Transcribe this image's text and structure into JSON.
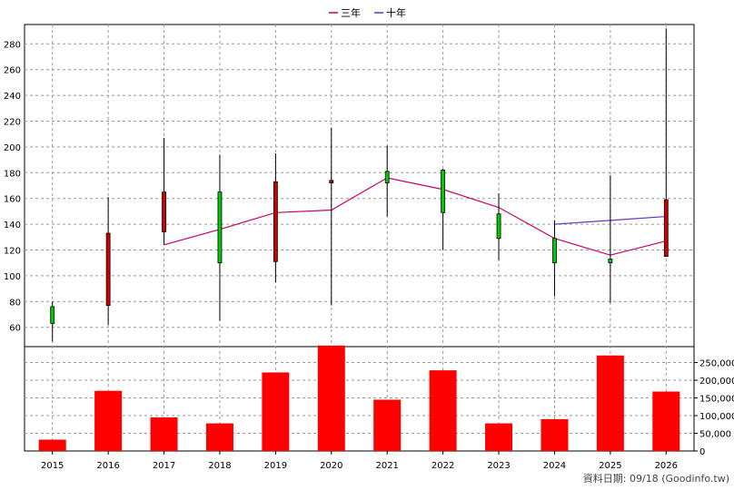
{
  "chart_data": {
    "type": "candlestick+line+bar",
    "years": [
      "2015",
      "2016",
      "2017",
      "2018",
      "2019",
      "2020",
      "2021",
      "2022",
      "2023",
      "2024",
      "2025",
      "2026"
    ],
    "price_axis": {
      "ticks": [
        60,
        80,
        100,
        120,
        140,
        160,
        180,
        200,
        220,
        240,
        260,
        280
      ],
      "ylim": [
        45,
        295
      ]
    },
    "candles": [
      {
        "year": "2015",
        "open": 76,
        "close": 63,
        "high": 80,
        "low": 49
      },
      {
        "year": "2016",
        "open": 77,
        "close": 133,
        "high": 161,
        "low": 62
      },
      {
        "year": "2017",
        "open": 134,
        "close": 165,
        "high": 207,
        "low": 124
      },
      {
        "year": "2018",
        "open": 165,
        "close": 110,
        "high": 194,
        "low": 65
      },
      {
        "year": "2019",
        "open": 111,
        "close": 173,
        "high": 195,
        "low": 95
      },
      {
        "year": "2020",
        "open": 172,
        "close": 174,
        "high": 215,
        "low": 77
      },
      {
        "year": "2021",
        "open": 181,
        "close": 172,
        "high": 201,
        "low": 146
      },
      {
        "year": "2022",
        "open": 182,
        "close": 149,
        "high": 183,
        "low": 120
      },
      {
        "year": "2023",
        "open": 148,
        "close": 129,
        "high": 164,
        "low": 112
      },
      {
        "year": "2024",
        "open": 129,
        "close": 110,
        "high": 143,
        "low": 84
      },
      {
        "year": "2025",
        "open": 113,
        "close": 110,
        "high": 178,
        "low": 79
      },
      {
        "year": "2026",
        "open": 115,
        "close": 159,
        "high": 292,
        "low": 115
      }
    ],
    "candle_colors": {
      "up": "#d10000",
      "down": "#00cc00",
      "border": "#000000"
    },
    "series": [
      {
        "name": "三年",
        "color": "#cc0066",
        "x": [
          "2017",
          "2018",
          "2019",
          "2020",
          "2021",
          "2022",
          "2023",
          "2024",
          "2025",
          "2026"
        ],
        "values": [
          124,
          136,
          149,
          151,
          176,
          167,
          153,
          129,
          116,
          127
        ]
      },
      {
        "name": "十年",
        "color": "#6633cc",
        "x": [
          "2024",
          "2025",
          "2026"
        ],
        "values": [
          140,
          143,
          146
        ]
      }
    ],
    "volume": {
      "values": [
        32000,
        170000,
        95000,
        78000,
        222000,
        298000,
        145000,
        228000,
        78000,
        90000,
        270000,
        168000
      ],
      "color": "#ff0000",
      "ticks": [
        0,
        50000,
        100000,
        150000,
        200000,
        250000
      ],
      "tick_labels": [
        "0",
        "50,000",
        "100,000",
        "150,000",
        "200,000",
        "250,000"
      ],
      "ylim": [
        0,
        295000
      ]
    },
    "grid": true,
    "legend": "top-center",
    "source_note": "資料日期: 09/18 (Goodinfo.tw)"
  }
}
